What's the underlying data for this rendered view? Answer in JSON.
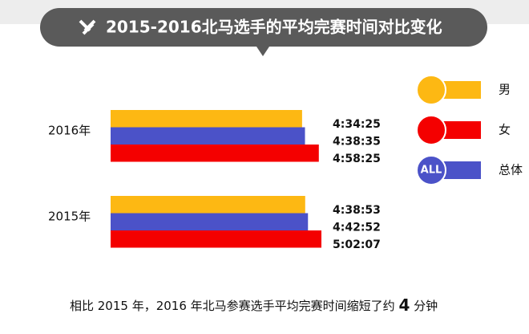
{
  "chart_data": {
    "type": "bar",
    "orientation": "horizontal",
    "title": "2015-2016北马选手的平均完赛时间对比变化",
    "categories": [
      "2016年",
      "2015年"
    ],
    "series": [
      {
        "name": "男",
        "color": "#FDB813",
        "values": [
          16465,
          16733
        ],
        "value_labels": [
          "4:34:25",
          "4:38:53"
        ]
      },
      {
        "name": "女",
        "color": "#F40000",
        "values": [
          17905,
          18127
        ],
        "value_labels": [
          "4:58:25",
          "5:02:07"
        ]
      },
      {
        "name": "总体",
        "color": "#4B52C8",
        "values": [
          16715,
          16972
        ],
        "value_labels": [
          "4:38:35",
          "4:42:52"
        ]
      }
    ],
    "legend_badge": "ALL",
    "footnote": {
      "before": "相比 2015 年，2016 年北马参赛选手平均完赛时间缩短了约",
      "number": 4,
      "after": "分钟"
    }
  }
}
